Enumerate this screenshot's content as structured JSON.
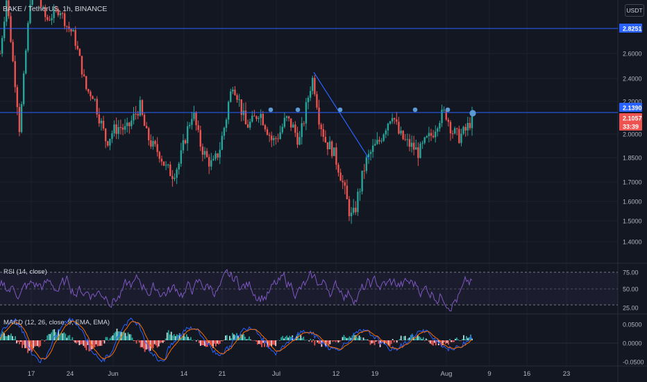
{
  "title": "BAKE / TetherUS, 1h, BINANCE",
  "currency": "USDT",
  "rsi_label": "RSI (14, close)",
  "macd_label": "MACD (12, 26, close, 9, EMA, EMA)",
  "colors": {
    "background": "#131722",
    "up": "#26a69a",
    "down": "#ef5350",
    "hline": "#2962ff",
    "rsi": "#7e57c2",
    "macd": "#2962ff",
    "signal": "#ff6d00"
  },
  "chart_data": [
    {
      "type": "candlestick",
      "title": "BAKE / TetherUS, 1h, BINANCE",
      "x_ticks": [
        "17",
        "24",
        "Jun",
        "14",
        "21",
        "Jul",
        "12",
        "19",
        "Aug",
        "9",
        "16",
        "23"
      ],
      "y_ticks": [
        "2.6000",
        "2.4000",
        "2.2000",
        "2.0000",
        "1.8500",
        "1.7000",
        "1.6000",
        "1.5000",
        "1.4000"
      ],
      "price_labels": [
        {
          "value": "2.8251",
          "color": "#2962ff"
        },
        {
          "value": "2.1390",
          "color": "#2962ff"
        },
        {
          "value": "2.1057",
          "color": "#ef5350"
        },
        {
          "value": "33:39",
          "color": "#ef5350"
        }
      ],
      "horizontal_lines": [
        2.8251,
        2.139
      ],
      "series": [
        {
          "name": "price",
          "values": [
            2.6,
            3.1,
            2.5,
            2.0,
            2.7,
            3.4,
            3.05,
            2.9,
            2.95,
            3.0,
            2.85,
            2.78,
            2.55,
            2.3,
            2.25,
            2.1,
            1.95,
            2.02,
            2.05,
            2.02,
            2.1,
            2.18,
            2.0,
            1.92,
            1.88,
            1.78,
            1.75,
            1.82,
            2.0,
            2.15,
            1.95,
            1.85,
            1.8,
            1.9,
            2.1,
            2.35,
            2.2,
            2.05,
            2.08,
            2.15,
            2.05,
            1.95,
            2.0,
            2.1,
            2.05,
            1.95,
            2.15,
            2.4,
            2.1,
            1.95,
            1.9,
            1.78,
            1.62,
            1.5,
            1.65,
            1.82,
            1.9,
            1.95,
            2.05,
            2.14,
            2.0,
            1.95,
            1.92,
            1.88,
            1.95,
            2.0,
            2.1,
            2.14,
            2.02,
            1.98,
            2.02,
            2.1
          ]
        }
      ]
    },
    {
      "type": "line",
      "title": "RSI (14, close)",
      "y_ticks": [
        "75.00",
        "50.00",
        "25.00"
      ],
      "ylim": [
        20,
        80
      ]
    },
    {
      "type": "line",
      "title": "MACD (12, 26, close, 9, EMA, EMA)",
      "y_ticks": [
        "0.0500",
        "0.0000",
        "-0.0500"
      ],
      "ylim": [
        -0.055,
        0.055
      ],
      "series": [
        {
          "name": "MACD"
        },
        {
          "name": "Signal"
        }
      ]
    }
  ]
}
